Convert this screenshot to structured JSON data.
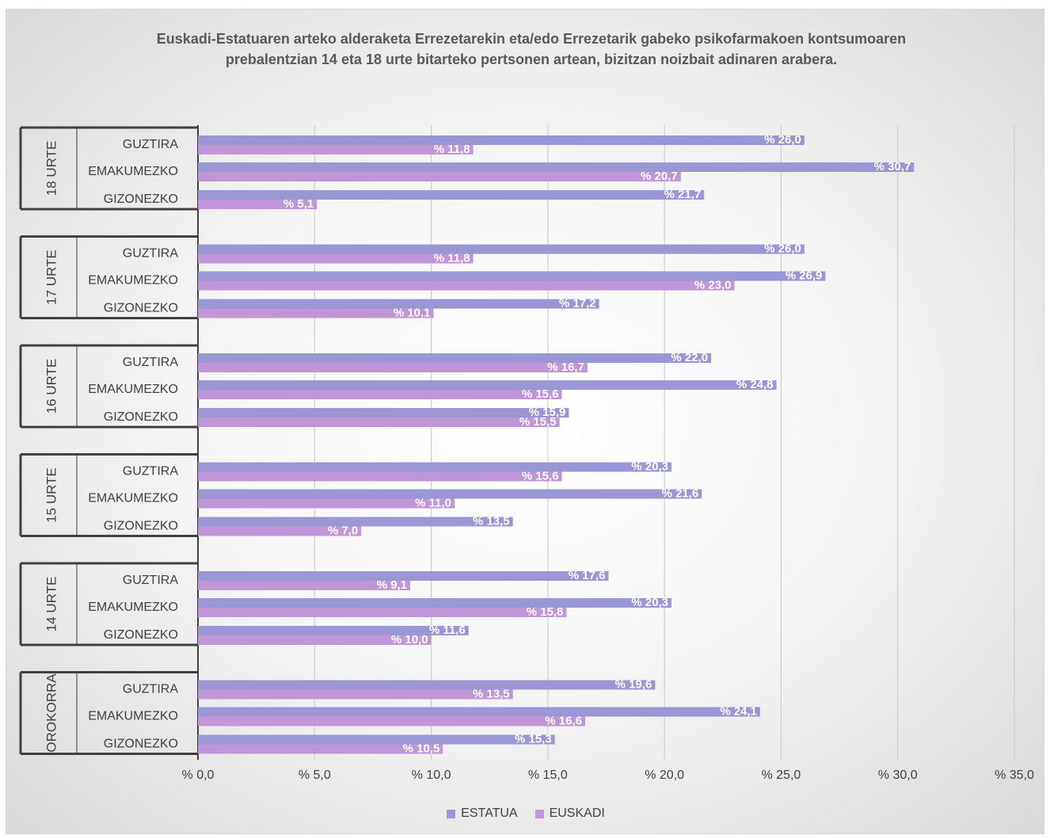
{
  "chart_data": {
    "type": "bar",
    "orientation": "horizontal",
    "title": "Euskadi-Estatuaren arteko alderaketa Errezetarekin eta/edo Errezetarik gabeko psikofarmakoen kontsumoaren prebalentzian 14 eta 18 urte bitarteko pertsonen artean, bizitzan noizbait adinaren arabera.",
    "xlim": [
      0,
      35
    ],
    "x_ticks": [
      "% 0,0",
      "% 5,0",
      "% 10,0",
      "% 15,0",
      "% 20,0",
      "% 25,0",
      "% 30,0",
      "% 35,0"
    ],
    "grid": true,
    "legend": "bottom",
    "series": [
      {
        "name": "ESTATUA",
        "color": "#9b97d4"
      },
      {
        "name": "EUSKADI",
        "color": "#c096d8"
      }
    ],
    "groups": [
      {
        "label": "18 URTE",
        "rows": [
          {
            "label": "GUZTIRA",
            "values": [
              26.0,
              11.8
            ],
            "labels": [
              "% 26,0",
              "% 11,8"
            ]
          },
          {
            "label": "EMAKUMEZKO",
            "values": [
              30.7,
              20.7
            ],
            "labels": [
              "% 30,7",
              "% 20,7"
            ]
          },
          {
            "label": "GIZONEZKO",
            "values": [
              21.7,
              5.1
            ],
            "labels": [
              "% 21,7",
              "% 5,1"
            ]
          }
        ]
      },
      {
        "label": "17 URTE",
        "rows": [
          {
            "label": "GUZTIRA",
            "values": [
              26.0,
              11.8
            ],
            "labels": [
              "% 26,0",
              "% 11,8"
            ]
          },
          {
            "label": "EMAKUMEZKO",
            "values": [
              26.9,
              23.0
            ],
            "labels": [
              "% 26,9",
              "% 23,0"
            ]
          },
          {
            "label": "GIZONEZKO",
            "values": [
              17.2,
              10.1
            ],
            "labels": [
              "% 17,2",
              "% 10,1"
            ]
          }
        ]
      },
      {
        "label": "16 URTE",
        "rows": [
          {
            "label": "GUZTIRA",
            "values": [
              22.0,
              16.7
            ],
            "labels": [
              "% 22,0",
              "% 16,7"
            ]
          },
          {
            "label": "EMAKUMEZKO",
            "values": [
              24.8,
              15.6
            ],
            "labels": [
              "% 24,8",
              "% 15,6"
            ]
          },
          {
            "label": "GIZONEZKO",
            "values": [
              15.9,
              15.5
            ],
            "labels": [
              "% 15,9",
              "% 15,5"
            ]
          }
        ]
      },
      {
        "label": "15 URTE",
        "rows": [
          {
            "label": "GUZTIRA",
            "values": [
              20.3,
              15.6
            ],
            "labels": [
              "% 20,3",
              "% 15,6"
            ]
          },
          {
            "label": "EMAKUMEZKO",
            "values": [
              21.6,
              11.0
            ],
            "labels": [
              "% 21,6",
              "% 11,0"
            ]
          },
          {
            "label": "GIZONEZKO",
            "values": [
              13.5,
              7.0
            ],
            "labels": [
              "% 13,5",
              "% 7,0"
            ]
          }
        ]
      },
      {
        "label": "14 URTE",
        "rows": [
          {
            "label": "GUZTIRA",
            "values": [
              17.6,
              9.1
            ],
            "labels": [
              "% 17,6",
              "% 9,1"
            ]
          },
          {
            "label": "EMAKUMEZKO",
            "values": [
              20.3,
              15.8
            ],
            "labels": [
              "% 20,3",
              "% 15,8"
            ]
          },
          {
            "label": "GIZONEZKO",
            "values": [
              11.6,
              10.0
            ],
            "labels": [
              "% 11,6",
              "% 10,0"
            ]
          }
        ]
      },
      {
        "label": "OROKORRA",
        "rows": [
          {
            "label": "GUZTIRA",
            "values": [
              19.6,
              13.5
            ],
            "labels": [
              "% 19,6",
              "% 13,5"
            ]
          },
          {
            "label": "EMAKUMEZKO",
            "values": [
              24.1,
              16.6
            ],
            "labels": [
              "% 24,1",
              "% 16,6"
            ]
          },
          {
            "label": "GIZONEZKO",
            "values": [
              15.3,
              10.5
            ],
            "labels": [
              "% 15,3",
              "% 10,5"
            ]
          }
        ]
      }
    ]
  }
}
